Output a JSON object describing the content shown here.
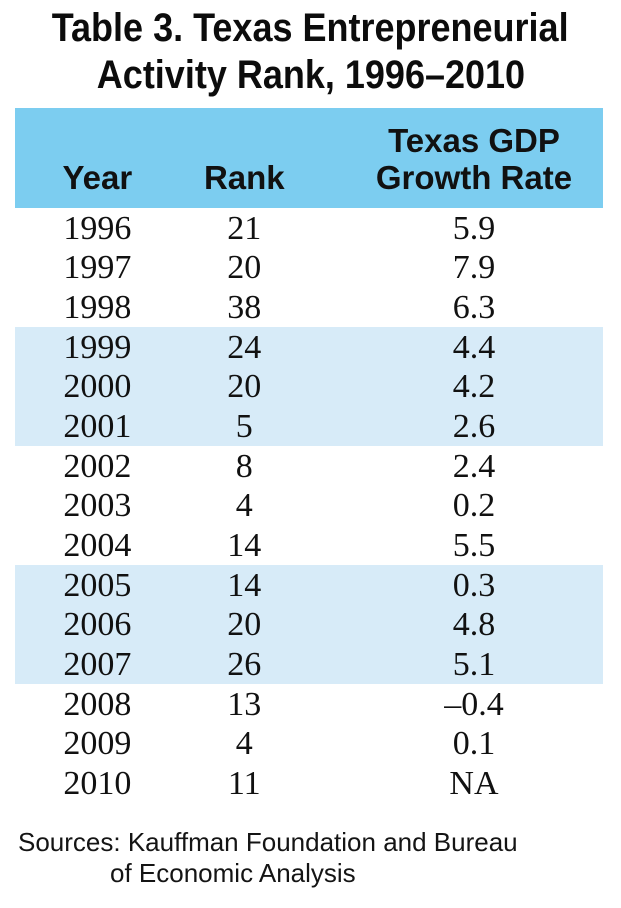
{
  "title": {
    "line1": "Table 3. Texas Entrepreneurial",
    "line2": "Activity Rank, 1996–2010"
  },
  "table": {
    "headers": {
      "year": "Year",
      "rank": "Rank",
      "gdp": "Texas GDP\nGrowth Rate"
    },
    "rows": [
      {
        "year": "1996",
        "rank": "21",
        "gdp": "5.9"
      },
      {
        "year": "1997",
        "rank": "20",
        "gdp": "7.9"
      },
      {
        "year": "1998",
        "rank": "38",
        "gdp": "6.3"
      },
      {
        "year": "1999",
        "rank": "24",
        "gdp": "4.4"
      },
      {
        "year": "2000",
        "rank": "20",
        "gdp": "4.2"
      },
      {
        "year": "2001",
        "rank": "5",
        "gdp": "2.6"
      },
      {
        "year": "2002",
        "rank": "8",
        "gdp": "2.4"
      },
      {
        "year": "2003",
        "rank": "4",
        "gdp": "0.2"
      },
      {
        "year": "2004",
        "rank": "14",
        "gdp": "5.5"
      },
      {
        "year": "2005",
        "rank": "14",
        "gdp": "0.3"
      },
      {
        "year": "2006",
        "rank": "20",
        "gdp": "4.8"
      },
      {
        "year": "2007",
        "rank": "26",
        "gdp": "5.1"
      },
      {
        "year": "2008",
        "rank": "13",
        "gdp": "–0.4"
      },
      {
        "year": "2009",
        "rank": "4",
        "gdp": "0.1"
      },
      {
        "year": "2010",
        "rank": "11",
        "gdp": "NA"
      }
    ]
  },
  "sources": {
    "line1": "Sources: Kauffman Foundation and Bureau",
    "line2": "of Economic Analysis"
  },
  "colors": {
    "header_bg": "#7CCDF0",
    "band_bg": "#D7EBF8"
  }
}
